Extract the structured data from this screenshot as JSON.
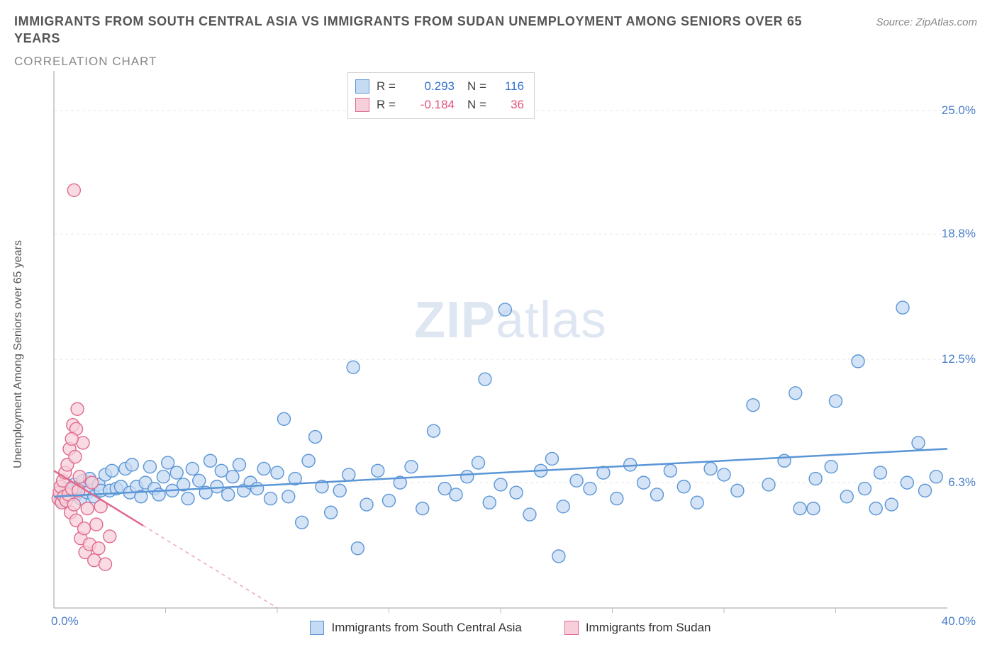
{
  "title": "IMMIGRANTS FROM SOUTH CENTRAL ASIA VS IMMIGRANTS FROM SUDAN UNEMPLOYMENT AMONG SENIORS OVER 65 YEARS",
  "subtitle": "CORRELATION CHART",
  "source": "Source: ZipAtlas.com",
  "ylabel": "Unemployment Among Seniors over 65 years",
  "watermark_a": "ZIP",
  "watermark_b": "atlas",
  "chart": {
    "type": "scatter",
    "xlim": [
      0,
      40
    ],
    "ylim": [
      0,
      27
    ],
    "xticks": [
      0,
      40
    ],
    "xtick_labels": [
      "0.0%",
      "40.0%"
    ],
    "yticks": [
      6.3,
      12.5,
      18.8,
      25.0
    ],
    "ytick_labels": [
      "6.3%",
      "12.5%",
      "18.8%",
      "25.0%"
    ],
    "grid_color": "#e6e6e6",
    "border_color": "#bdbdbd",
    "background_color": "#ffffff",
    "marker_radius": 9,
    "series": [
      {
        "name": "Immigrants from South Central Asia",
        "color_fill": "#c5daf3",
        "color_stroke": "#5a96d6",
        "text_color": "#2f6fd0",
        "R": "0.293",
        "N": "116",
        "trend": {
          "x1": 0,
          "y1": 5.6,
          "x2": 40,
          "y2": 8.0,
          "solid_until_x": 40
        },
        "points": [
          [
            0.3,
            5.4
          ],
          [
            0.5,
            5.6
          ],
          [
            0.6,
            6.0
          ],
          [
            0.7,
            5.8
          ],
          [
            0.8,
            5.9
          ],
          [
            0.9,
            6.2
          ],
          [
            1.0,
            5.7
          ],
          [
            1.1,
            6.1
          ],
          [
            1.2,
            5.5
          ],
          [
            1.3,
            6.4
          ],
          [
            1.5,
            5.8
          ],
          [
            1.6,
            6.5
          ],
          [
            1.8,
            5.6
          ],
          [
            2.0,
            6.2
          ],
          [
            2.1,
            5.9
          ],
          [
            2.3,
            6.7
          ],
          [
            2.5,
            5.9
          ],
          [
            2.6,
            6.9
          ],
          [
            2.8,
            6.0
          ],
          [
            3.0,
            6.1
          ],
          [
            3.2,
            7.0
          ],
          [
            3.4,
            5.8
          ],
          [
            3.5,
            7.2
          ],
          [
            3.7,
            6.1
          ],
          [
            3.9,
            5.6
          ],
          [
            4.1,
            6.3
          ],
          [
            4.3,
            7.1
          ],
          [
            4.5,
            6.0
          ],
          [
            4.7,
            5.7
          ],
          [
            4.9,
            6.6
          ],
          [
            5.1,
            7.3
          ],
          [
            5.3,
            5.9
          ],
          [
            5.5,
            6.8
          ],
          [
            5.8,
            6.2
          ],
          [
            6.0,
            5.5
          ],
          [
            6.2,
            7.0
          ],
          [
            6.5,
            6.4
          ],
          [
            6.8,
            5.8
          ],
          [
            7.0,
            7.4
          ],
          [
            7.3,
            6.1
          ],
          [
            7.5,
            6.9
          ],
          [
            7.8,
            5.7
          ],
          [
            8.0,
            6.6
          ],
          [
            8.3,
            7.2
          ],
          [
            8.5,
            5.9
          ],
          [
            8.8,
            6.3
          ],
          [
            9.1,
            6.0
          ],
          [
            9.4,
            7.0
          ],
          [
            9.7,
            5.5
          ],
          [
            10.0,
            6.8
          ],
          [
            10.3,
            9.5
          ],
          [
            10.5,
            5.6
          ],
          [
            10.8,
            6.5
          ],
          [
            11.1,
            4.3
          ],
          [
            11.4,
            7.4
          ],
          [
            11.7,
            8.6
          ],
          [
            12.0,
            6.1
          ],
          [
            12.4,
            4.8
          ],
          [
            12.8,
            5.9
          ],
          [
            13.2,
            6.7
          ],
          [
            13.4,
            12.1
          ],
          [
            13.6,
            3.0
          ],
          [
            14.0,
            5.2
          ],
          [
            14.5,
            6.9
          ],
          [
            15.0,
            5.4
          ],
          [
            15.5,
            6.3
          ],
          [
            16.0,
            7.1
          ],
          [
            16.5,
            5.0
          ],
          [
            17.0,
            8.9
          ],
          [
            17.5,
            6.0
          ],
          [
            18.0,
            5.7
          ],
          [
            18.5,
            6.6
          ],
          [
            19.0,
            7.3
          ],
          [
            19.5,
            5.3
          ],
          [
            19.3,
            11.5
          ],
          [
            20.0,
            6.2
          ],
          [
            20.2,
            15.0
          ],
          [
            20.7,
            5.8
          ],
          [
            21.3,
            4.7
          ],
          [
            21.8,
            6.9
          ],
          [
            22.3,
            7.5
          ],
          [
            22.8,
            5.1
          ],
          [
            22.6,
            2.6
          ],
          [
            23.4,
            6.4
          ],
          [
            24.0,
            6.0
          ],
          [
            24.6,
            6.8
          ],
          [
            25.2,
            5.5
          ],
          [
            25.8,
            7.2
          ],
          [
            26.4,
            6.3
          ],
          [
            27.0,
            5.7
          ],
          [
            27.6,
            6.9
          ],
          [
            28.2,
            6.1
          ],
          [
            28.8,
            5.3
          ],
          [
            29.4,
            7.0
          ],
          [
            30.0,
            6.7
          ],
          [
            30.6,
            5.9
          ],
          [
            31.3,
            10.2
          ],
          [
            32.0,
            6.2
          ],
          [
            32.7,
            7.4
          ],
          [
            33.2,
            10.8
          ],
          [
            33.4,
            5.0
          ],
          [
            34.1,
            6.5
          ],
          [
            34.8,
            7.1
          ],
          [
            35.0,
            10.4
          ],
          [
            35.5,
            5.6
          ],
          [
            36.0,
            12.4
          ],
          [
            36.3,
            6.0
          ],
          [
            37.0,
            6.8
          ],
          [
            37.5,
            5.2
          ],
          [
            38.0,
            15.1
          ],
          [
            38.2,
            6.3
          ],
          [
            38.7,
            8.3
          ],
          [
            39.0,
            5.9
          ],
          [
            39.5,
            6.6
          ],
          [
            36.8,
            5.0
          ],
          [
            34.0,
            5.0
          ]
        ]
      },
      {
        "name": "Immigrants from Sudan",
        "color_fill": "#f7cfda",
        "color_stroke": "#e06a8c",
        "text_color": "#e3547a",
        "R": "-0.184",
        "N": "36",
        "trend": {
          "x1": 0,
          "y1": 6.9,
          "x2": 10,
          "y2": 0.0,
          "solid_until_x": 4.0
        },
        "points": [
          [
            0.2,
            5.5
          ],
          [
            0.25,
            5.8
          ],
          [
            0.3,
            6.1
          ],
          [
            0.35,
            5.3
          ],
          [
            0.4,
            6.4
          ],
          [
            0.45,
            5.6
          ],
          [
            0.5,
            6.8
          ],
          [
            0.55,
            5.4
          ],
          [
            0.6,
            7.2
          ],
          [
            0.65,
            5.7
          ],
          [
            0.7,
            8.0
          ],
          [
            0.75,
            4.8
          ],
          [
            0.8,
            6.0
          ],
          [
            0.85,
            9.2
          ],
          [
            0.9,
            5.2
          ],
          [
            0.95,
            7.6
          ],
          [
            1.0,
            4.4
          ],
          [
            1.05,
            10.0
          ],
          [
            1.1,
            5.9
          ],
          [
            1.15,
            6.6
          ],
          [
            1.2,
            3.5
          ],
          [
            1.3,
            8.3
          ],
          [
            1.35,
            4.0
          ],
          [
            1.4,
            2.8
          ],
          [
            1.5,
            5.0
          ],
          [
            1.6,
            3.2
          ],
          [
            1.7,
            6.3
          ],
          [
            1.8,
            2.4
          ],
          [
            1.9,
            4.2
          ],
          [
            2.0,
            3.0
          ],
          [
            2.1,
            5.1
          ],
          [
            2.3,
            2.2
          ],
          [
            2.5,
            3.6
          ],
          [
            0.9,
            21.0
          ],
          [
            1.0,
            9.0
          ],
          [
            0.8,
            8.5
          ]
        ]
      }
    ]
  },
  "legend_bottom": [
    {
      "label": "Immigrants from South Central Asia",
      "fill": "#c5daf3",
      "stroke": "#5a96d6"
    },
    {
      "label": "Immigrants from Sudan",
      "fill": "#f7cfda",
      "stroke": "#e06a8c"
    }
  ]
}
